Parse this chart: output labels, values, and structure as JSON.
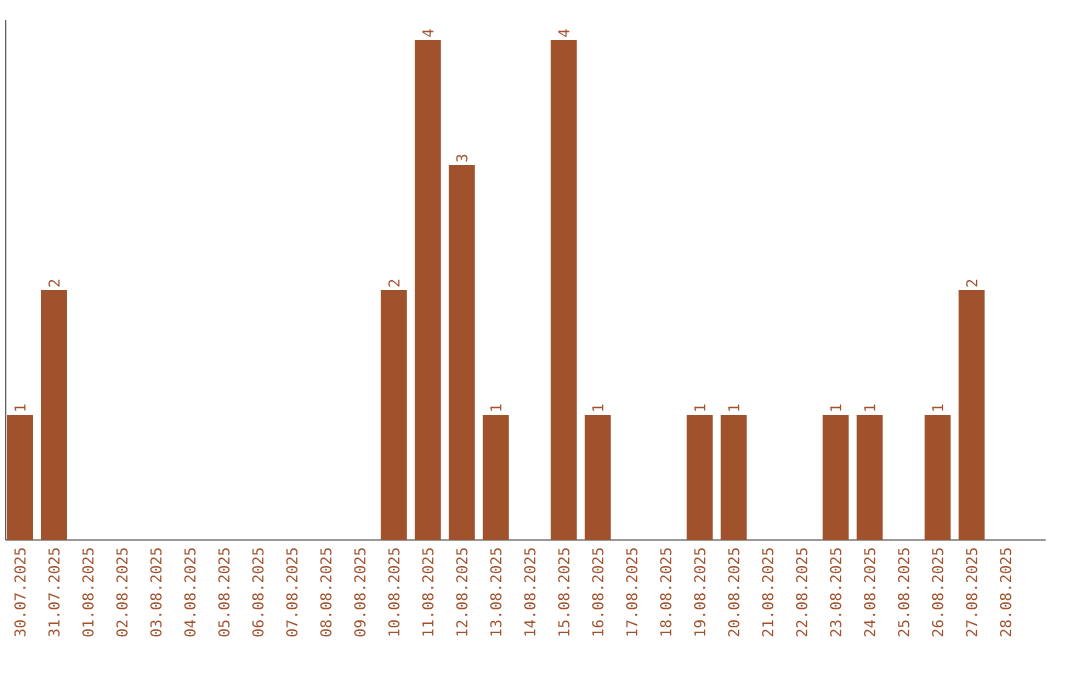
{
  "chart_data": {
    "type": "bar",
    "color": "#a0522d",
    "categories": [
      "30.07.2025",
      "31.07.2025",
      "01.08.2025",
      "02.08.2025",
      "03.08.2025",
      "04.08.2025",
      "05.08.2025",
      "06.08.2025",
      "07.08.2025",
      "08.08.2025",
      "09.08.2025",
      "10.08.2025",
      "11.08.2025",
      "12.08.2025",
      "13.08.2025",
      "14.08.2025",
      "15.08.2025",
      "16.08.2025",
      "17.08.2025",
      "18.08.2025",
      "19.08.2025",
      "20.08.2025",
      "21.08.2025",
      "22.08.2025",
      "23.08.2025",
      "24.08.2025",
      "25.08.2025",
      "26.08.2025",
      "27.08.2025",
      "28.08.2025"
    ],
    "values": [
      1,
      2,
      0,
      0,
      0,
      0,
      0,
      0,
      0,
      0,
      0,
      2,
      4,
      3,
      1,
      0,
      4,
      1,
      0,
      0,
      1,
      1,
      0,
      0,
      1,
      1,
      0,
      1,
      2,
      0
    ],
    "value_labels": [
      "1",
      "2",
      null,
      null,
      null,
      null,
      null,
      null,
      null,
      null,
      null,
      "2",
      "4",
      "3",
      "1",
      null,
      "4",
      "1",
      null,
      null,
      "1",
      "1",
      null,
      null,
      "1",
      "1",
      null,
      "1",
      "2",
      null
    ]
  }
}
